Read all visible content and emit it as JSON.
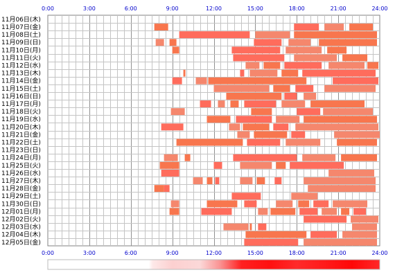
{
  "chart_data": {
    "type": "timeline",
    "x_unit": "hours",
    "x_range": [
      0,
      24
    ],
    "x_ticks": [
      "0:00",
      "3:00",
      "6:00",
      "9:00",
      "12:00",
      "15:00",
      "18:00",
      "21:00",
      "24:00"
    ],
    "x_tick_values": [
      0,
      3,
      6,
      9,
      12,
      15,
      18,
      21,
      24
    ],
    "grid": true,
    "bar_colors": [
      "#f5876d",
      "#f8764e",
      "#ff6c5c"
    ],
    "rows": [
      {
        "label": "11月06日(木)",
        "bars": []
      },
      {
        "label": "11月07日(金)",
        "bars": [
          [
            7.7,
            8.7
          ],
          [
            17.8,
            19.6
          ],
          [
            20.0,
            21.4
          ],
          [
            21.8,
            23.5
          ]
        ]
      },
      {
        "label": "11月08日(土)",
        "bars": [
          [
            9.5,
            14.6
          ],
          [
            15.0,
            17.5
          ],
          [
            17.8,
            23.8
          ]
        ]
      },
      {
        "label": "11月09日(日)",
        "bars": [
          [
            7.8,
            8.4
          ],
          [
            8.8,
            9.3
          ],
          [
            14.9,
            16.9
          ],
          [
            17.4,
            19.0
          ],
          [
            19.6,
            23.8
          ]
        ]
      },
      {
        "label": "11月10日(月)",
        "bars": [
          [
            9.0,
            9.5
          ],
          [
            13.3,
            16.8
          ],
          [
            17.2,
            19.8
          ],
          [
            20.2,
            21.6
          ]
        ]
      },
      {
        "label": "11月11日(火)",
        "bars": [
          [
            13.4,
            17.1
          ],
          [
            17.8,
            20.9
          ],
          [
            21.3,
            23.1
          ]
        ]
      },
      {
        "label": "11月12日(水)",
        "bars": [
          [
            14.3,
            15.3
          ],
          [
            15.6,
            16.8
          ],
          [
            17.1,
            19.8
          ],
          [
            20.3,
            22.9
          ],
          [
            23.1,
            23.9
          ]
        ]
      },
      {
        "label": "11月13日(木)",
        "bars": [
          [
            9.8,
            9.95
          ],
          [
            13.9,
            14.2
          ],
          [
            14.6,
            16.6
          ],
          [
            16.9,
            18.1
          ],
          [
            18.4,
            23.7
          ]
        ]
      },
      {
        "label": "11月14日(金)",
        "bars": [
          [
            9.0,
            9.7
          ],
          [
            10.7,
            11.5
          ],
          [
            11.6,
            18.7
          ],
          [
            20.6,
            23.9
          ]
        ]
      },
      {
        "label": "11月15日(土)",
        "bars": [
          [
            12.0,
            16.0
          ],
          [
            16.3,
            17.5
          ],
          [
            17.9,
            19.2
          ],
          [
            20.0,
            23.7
          ]
        ]
      },
      {
        "label": "11月16日(日)",
        "bars": [
          [
            12.9,
            16.9
          ],
          [
            17.1,
            18.0
          ],
          [
            18.5,
            19.4
          ]
        ]
      },
      {
        "label": "11月17日(月)",
        "bars": [
          [
            11.0,
            11.8
          ],
          [
            12.3,
            12.8
          ],
          [
            13.2,
            13.8
          ],
          [
            14.2,
            16.5
          ],
          [
            16.9,
            18.6
          ],
          [
            19.0,
            22.9
          ]
        ]
      },
      {
        "label": "11月18日(火)",
        "bars": [
          [
            8.9,
            9.9
          ],
          [
            14.7,
            16.2
          ],
          [
            18.0,
            19.7
          ],
          [
            19.9,
            23.5
          ]
        ]
      },
      {
        "label": "11月19日(水)",
        "bars": [
          [
            11.5,
            13.2
          ],
          [
            13.6,
            16.2
          ],
          [
            16.5,
            18.2
          ],
          [
            18.5,
            23.8
          ]
        ]
      },
      {
        "label": "11月20日(木)",
        "bars": [
          [
            8.2,
            9.8
          ],
          [
            13.1,
            13.9
          ],
          [
            14.1,
            16.0
          ],
          [
            16.3,
            17.4
          ],
          [
            17.9,
            23.9
          ]
        ]
      },
      {
        "label": "11月21日(金)",
        "bars": [
          [
            13.7,
            14.6
          ],
          [
            14.9,
            17.3
          ],
          [
            17.6,
            18.6
          ],
          [
            20.7,
            24.0
          ]
        ]
      },
      {
        "label": "11月22日(土)",
        "bars": [
          [
            9.3,
            14.1
          ],
          [
            14.4,
            16.8
          ],
          [
            17.2,
            19.7
          ],
          [
            20.9,
            23.8
          ]
        ]
      },
      {
        "label": "11月23日(日)",
        "bars": []
      },
      {
        "label": "11月24日(月)",
        "bars": [
          [
            8.4,
            9.4
          ],
          [
            9.9,
            10.3
          ],
          [
            13.4,
            18.0
          ],
          [
            18.4,
            20.8
          ],
          [
            21.2,
            23.8
          ]
        ]
      },
      {
        "label": "11月25日(火)",
        "bars": [
          [
            8.1,
            9.5
          ],
          [
            12.0,
            12.6
          ],
          [
            13.9,
            16.2
          ],
          [
            16.5,
            17.2
          ],
          [
            17.5,
            21.4
          ]
        ]
      },
      {
        "label": "11月26日(水)",
        "bars": [
          [
            8.2,
            9.5
          ],
          [
            20.3,
            23.6
          ]
        ]
      },
      {
        "label": "11月27日(木)",
        "bars": [
          [
            10.5,
            11.2
          ],
          [
            11.5,
            11.9
          ],
          [
            12.1,
            12.4
          ],
          [
            13.9,
            14.8
          ],
          [
            15.1,
            15.7
          ],
          [
            16.4,
            16.9
          ],
          [
            18.5,
            23.7
          ]
        ]
      },
      {
        "label": "11月28日(金)",
        "bars": [
          [
            7.7,
            8.4
          ],
          [
            8.4,
            8.8
          ],
          [
            18.8,
            23.7
          ]
        ]
      },
      {
        "label": "11月29日(土)",
        "bars": [
          [
            13.3,
            15.4
          ],
          [
            17.6,
            19.5
          ]
        ]
      },
      {
        "label": "11月30日(日)",
        "bars": [
          [
            8.9,
            9.5
          ],
          [
            11.5,
            13.7
          ],
          [
            14.2,
            15.1
          ],
          [
            16.5,
            17.7
          ],
          [
            18.1,
            18.9
          ],
          [
            19.2,
            20.3
          ],
          [
            20.6,
            23.1
          ]
        ]
      },
      {
        "label": "12月01日(月)",
        "bars": [
          [
            8.8,
            9.5
          ],
          [
            11.1,
            13.3
          ],
          [
            15.2,
            15.9
          ],
          [
            16.1,
            17.9
          ],
          [
            18.2,
            19.5
          ],
          [
            19.8,
            20.9
          ],
          [
            21.2,
            21.8
          ],
          [
            22.1,
            23.0
          ]
        ]
      },
      {
        "label": "12月02日(火)",
        "bars": [
          [
            18.5,
            21.6
          ],
          [
            21.9,
            23.9
          ]
        ]
      },
      {
        "label": "12月03日(水)",
        "bars": [
          [
            12.7,
            14.5
          ],
          [
            14.6,
            14.75
          ],
          [
            15.2,
            15.8
          ],
          [
            22.0,
            23.8
          ]
        ]
      },
      {
        "label": "12月04日(木)",
        "bars": [
          [
            14.3,
            18.7
          ],
          [
            19.0,
            20.9
          ],
          [
            21.3,
            23.8
          ]
        ]
      },
      {
        "label": "12月05日(金)",
        "bars": [
          [
            14.2,
            18.1
          ],
          [
            18.5,
            23.8
          ]
        ]
      }
    ],
    "density_bar": {
      "range": [
        0,
        24
      ],
      "gradient": [
        {
          "hour": 0,
          "color": "#ffffff"
        },
        {
          "hour": 7.3,
          "color": "#ffffff"
        },
        {
          "hour": 7.6,
          "color": "#fde8e8"
        },
        {
          "hour": 9.0,
          "color": "#fcd0d0"
        },
        {
          "hour": 11.0,
          "color": "#fbd8d8"
        },
        {
          "hour": 12.5,
          "color": "#fa9090"
        },
        {
          "hour": 14.0,
          "color": "#ff2020"
        },
        {
          "hour": 16.0,
          "color": "#ff1010"
        },
        {
          "hour": 18.0,
          "color": "#ff2a2a"
        },
        {
          "hour": 20.0,
          "color": "#ff1a1a"
        },
        {
          "hour": 22.0,
          "color": "#ff0808"
        },
        {
          "hour": 24.0,
          "color": "#ff2828"
        }
      ]
    }
  }
}
